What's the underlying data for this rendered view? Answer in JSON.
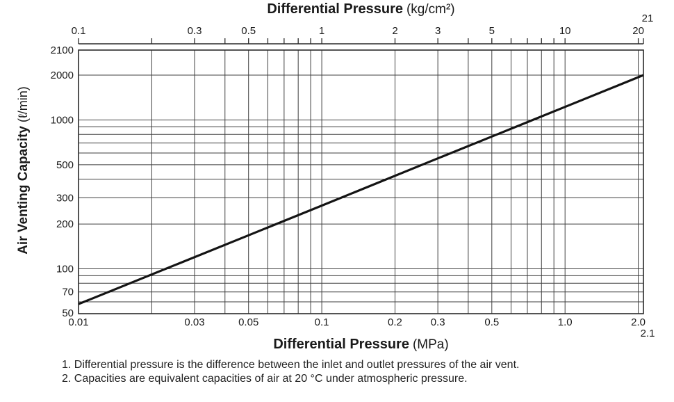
{
  "chart_data": {
    "type": "line",
    "x_axis_bottom": {
      "title": "Differential Pressure",
      "title_unit": "(MPa)",
      "scale": "log",
      "min": 0.01,
      "max": 2.1,
      "gridlines": [
        0.02,
        0.03,
        0.04,
        0.05,
        0.06,
        0.07,
        0.08,
        0.09,
        0.1,
        0.2,
        0.3,
        0.4,
        0.5,
        0.6,
        0.7,
        0.8,
        0.9,
        1.0,
        2.0
      ],
      "labels": [
        {
          "value": 0.01,
          "text": "0.01"
        },
        {
          "value": 0.03,
          "text": "0.03"
        },
        {
          "value": 0.05,
          "text": "0.05"
        },
        {
          "value": 0.1,
          "text": "0.1"
        },
        {
          "value": 0.2,
          "text": "0.2"
        },
        {
          "value": 0.3,
          "text": "0.3"
        },
        {
          "value": 0.5,
          "text": "0.5"
        },
        {
          "value": 1.0,
          "text": "1.0"
        },
        {
          "value": 2.0,
          "text": "2.0"
        },
        {
          "value": 2.1,
          "text": "2.1",
          "offset_row": true
        }
      ]
    },
    "x_axis_top": {
      "title": "Differential Pressure",
      "title_unit": "(kg/cm²)",
      "unit_to_mpa": 0.1,
      "ticks": [
        0.1,
        0.2,
        0.3,
        0.4,
        0.5,
        0.6,
        0.7,
        0.8,
        0.9,
        1,
        2,
        3,
        4,
        5,
        6,
        7,
        8,
        9,
        10,
        20,
        21
      ],
      "labels": [
        {
          "value": 0.1,
          "text": "0.1"
        },
        {
          "value": 0.3,
          "text": "0.3"
        },
        {
          "value": 0.5,
          "text": "0.5"
        },
        {
          "value": 1,
          "text": "1"
        },
        {
          "value": 2,
          "text": "2"
        },
        {
          "value": 3,
          "text": "3"
        },
        {
          "value": 5,
          "text": "5"
        },
        {
          "value": 10,
          "text": "10"
        },
        {
          "value": 20,
          "text": "20"
        },
        {
          "value": 21,
          "text": "21",
          "offset_row": true
        }
      ]
    },
    "y_axis": {
      "title": "Air Venting Capacity",
      "title_unit": "(ℓ/min)",
      "scale": "log",
      "min": 50,
      "log_top": 2000,
      "max_label": 2100,
      "gridlines": [
        60,
        70,
        80,
        90,
        100,
        200,
        300,
        400,
        500,
        600,
        700,
        800,
        900,
        1000,
        2000
      ],
      "labels": [
        {
          "value": 2100,
          "text": "2100"
        },
        {
          "value": 2000,
          "text": "2000"
        },
        {
          "value": 1000,
          "text": "1000"
        },
        {
          "value": 500,
          "text": "500"
        },
        {
          "value": 300,
          "text": "300"
        },
        {
          "value": 200,
          "text": "200"
        },
        {
          "value": 100,
          "text": "100"
        },
        {
          "value": 70,
          "text": "70"
        },
        {
          "value": 50,
          "text": "50"
        }
      ]
    },
    "series": [
      {
        "name": "air-venting-capacity",
        "color": "#141414",
        "points": [
          [
            0.01,
            58
          ],
          [
            0.05,
            168
          ],
          [
            0.1,
            266
          ],
          [
            0.3,
            552
          ],
          [
            0.5,
            774
          ],
          [
            1.0,
            1224
          ],
          [
            2.0,
            1937
          ],
          [
            2.1,
            2000
          ]
        ]
      }
    ],
    "grid_on": true,
    "grid_color": "#3f3f3f",
    "border_color": "#2a2a2a",
    "legend": "none"
  },
  "footnotes": [
    "1. Differential pressure is the difference between the inlet and outlet pressures of the air vent.",
    "2. Capacities are equivalent capacities of air at 20 °C under atmospheric pressure."
  ]
}
